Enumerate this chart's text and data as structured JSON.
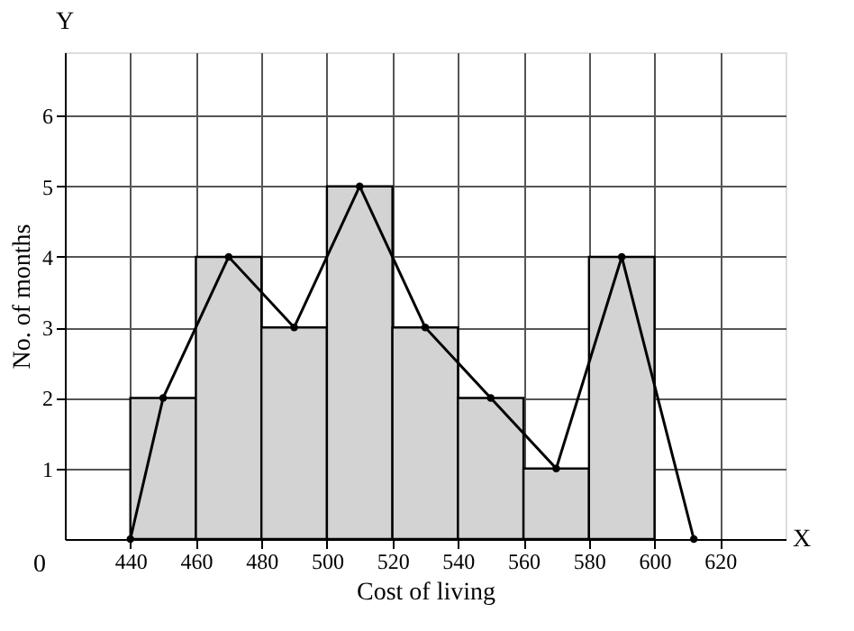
{
  "chart_data": {
    "type": "histogram",
    "xlabel": "Cost of living",
    "ylabel": "No. of months",
    "bins": [
      440,
      460,
      480,
      500,
      520,
      540,
      560,
      580,
      600
    ],
    "values": [
      2,
      4,
      3,
      5,
      3,
      2,
      1,
      4
    ],
    "color": "#d3d3d3",
    "series": [
      {
        "type": "line",
        "color": "#000000",
        "x": [
          440,
          450,
          470,
          490,
          510,
          530,
          550,
          570,
          590,
          612
        ],
        "values": [
          0,
          2,
          4,
          3,
          5,
          3,
          2,
          1,
          4,
          0
        ],
        "marker": "circle",
        "line_style": "solid"
      }
    ],
    "xlim": [
      420,
      640
    ],
    "ylim": [
      0,
      6.9
    ],
    "xticks": [
      440,
      460,
      480,
      500,
      520,
      540,
      560,
      580,
      600,
      620
    ],
    "yticks": [
      1,
      2,
      3,
      4,
      5,
      6
    ],
    "annotations": [
      "X",
      "Y",
      "0"
    ],
    "grid": true
  }
}
